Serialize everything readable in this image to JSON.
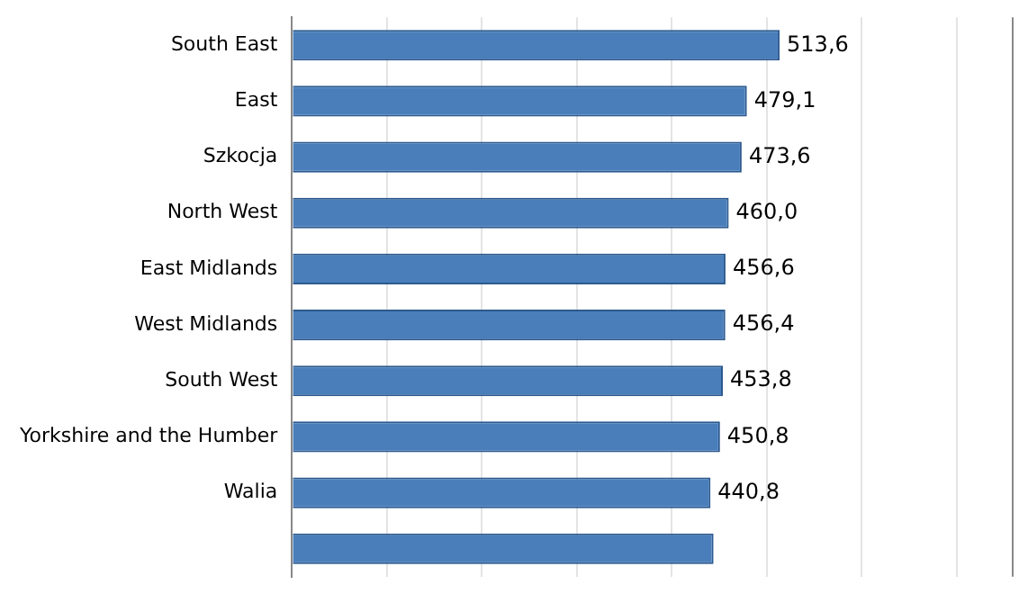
{
  "chart_data": {
    "type": "bar",
    "orientation": "horizontal",
    "categories": [
      "South East",
      "East",
      "Szkocja",
      "North West",
      "East Midlands",
      "West Midlands",
      "South West",
      "Yorkshire and the Humber",
      "Walia",
      null
    ],
    "values": [
      513.6,
      479.1,
      473.6,
      460.0,
      456.6,
      456.4,
      453.8,
      450.8,
      440.8,
      444
    ],
    "value_labels": [
      "513,6",
      "479,1",
      "473,6",
      "460,0",
      "456,6",
      "456,4",
      "453,8",
      "450,8",
      "440,8",
      null
    ],
    "color": "#4a7ebb",
    "xlim": [
      0,
      760
    ],
    "xticks": [
      {
        "value": 0,
        "label": null
      },
      {
        "value": 100,
        "label": null
      },
      {
        "value": 200,
        "label": null
      },
      {
        "value": 300,
        "label": null
      },
      {
        "value": 400,
        "label": null
      },
      {
        "value": 500,
        "label": null
      },
      {
        "value": 600,
        "label": null
      },
      {
        "value": 700,
        "label": null
      }
    ],
    "grid": "x",
    "tick_labels": "y"
  }
}
